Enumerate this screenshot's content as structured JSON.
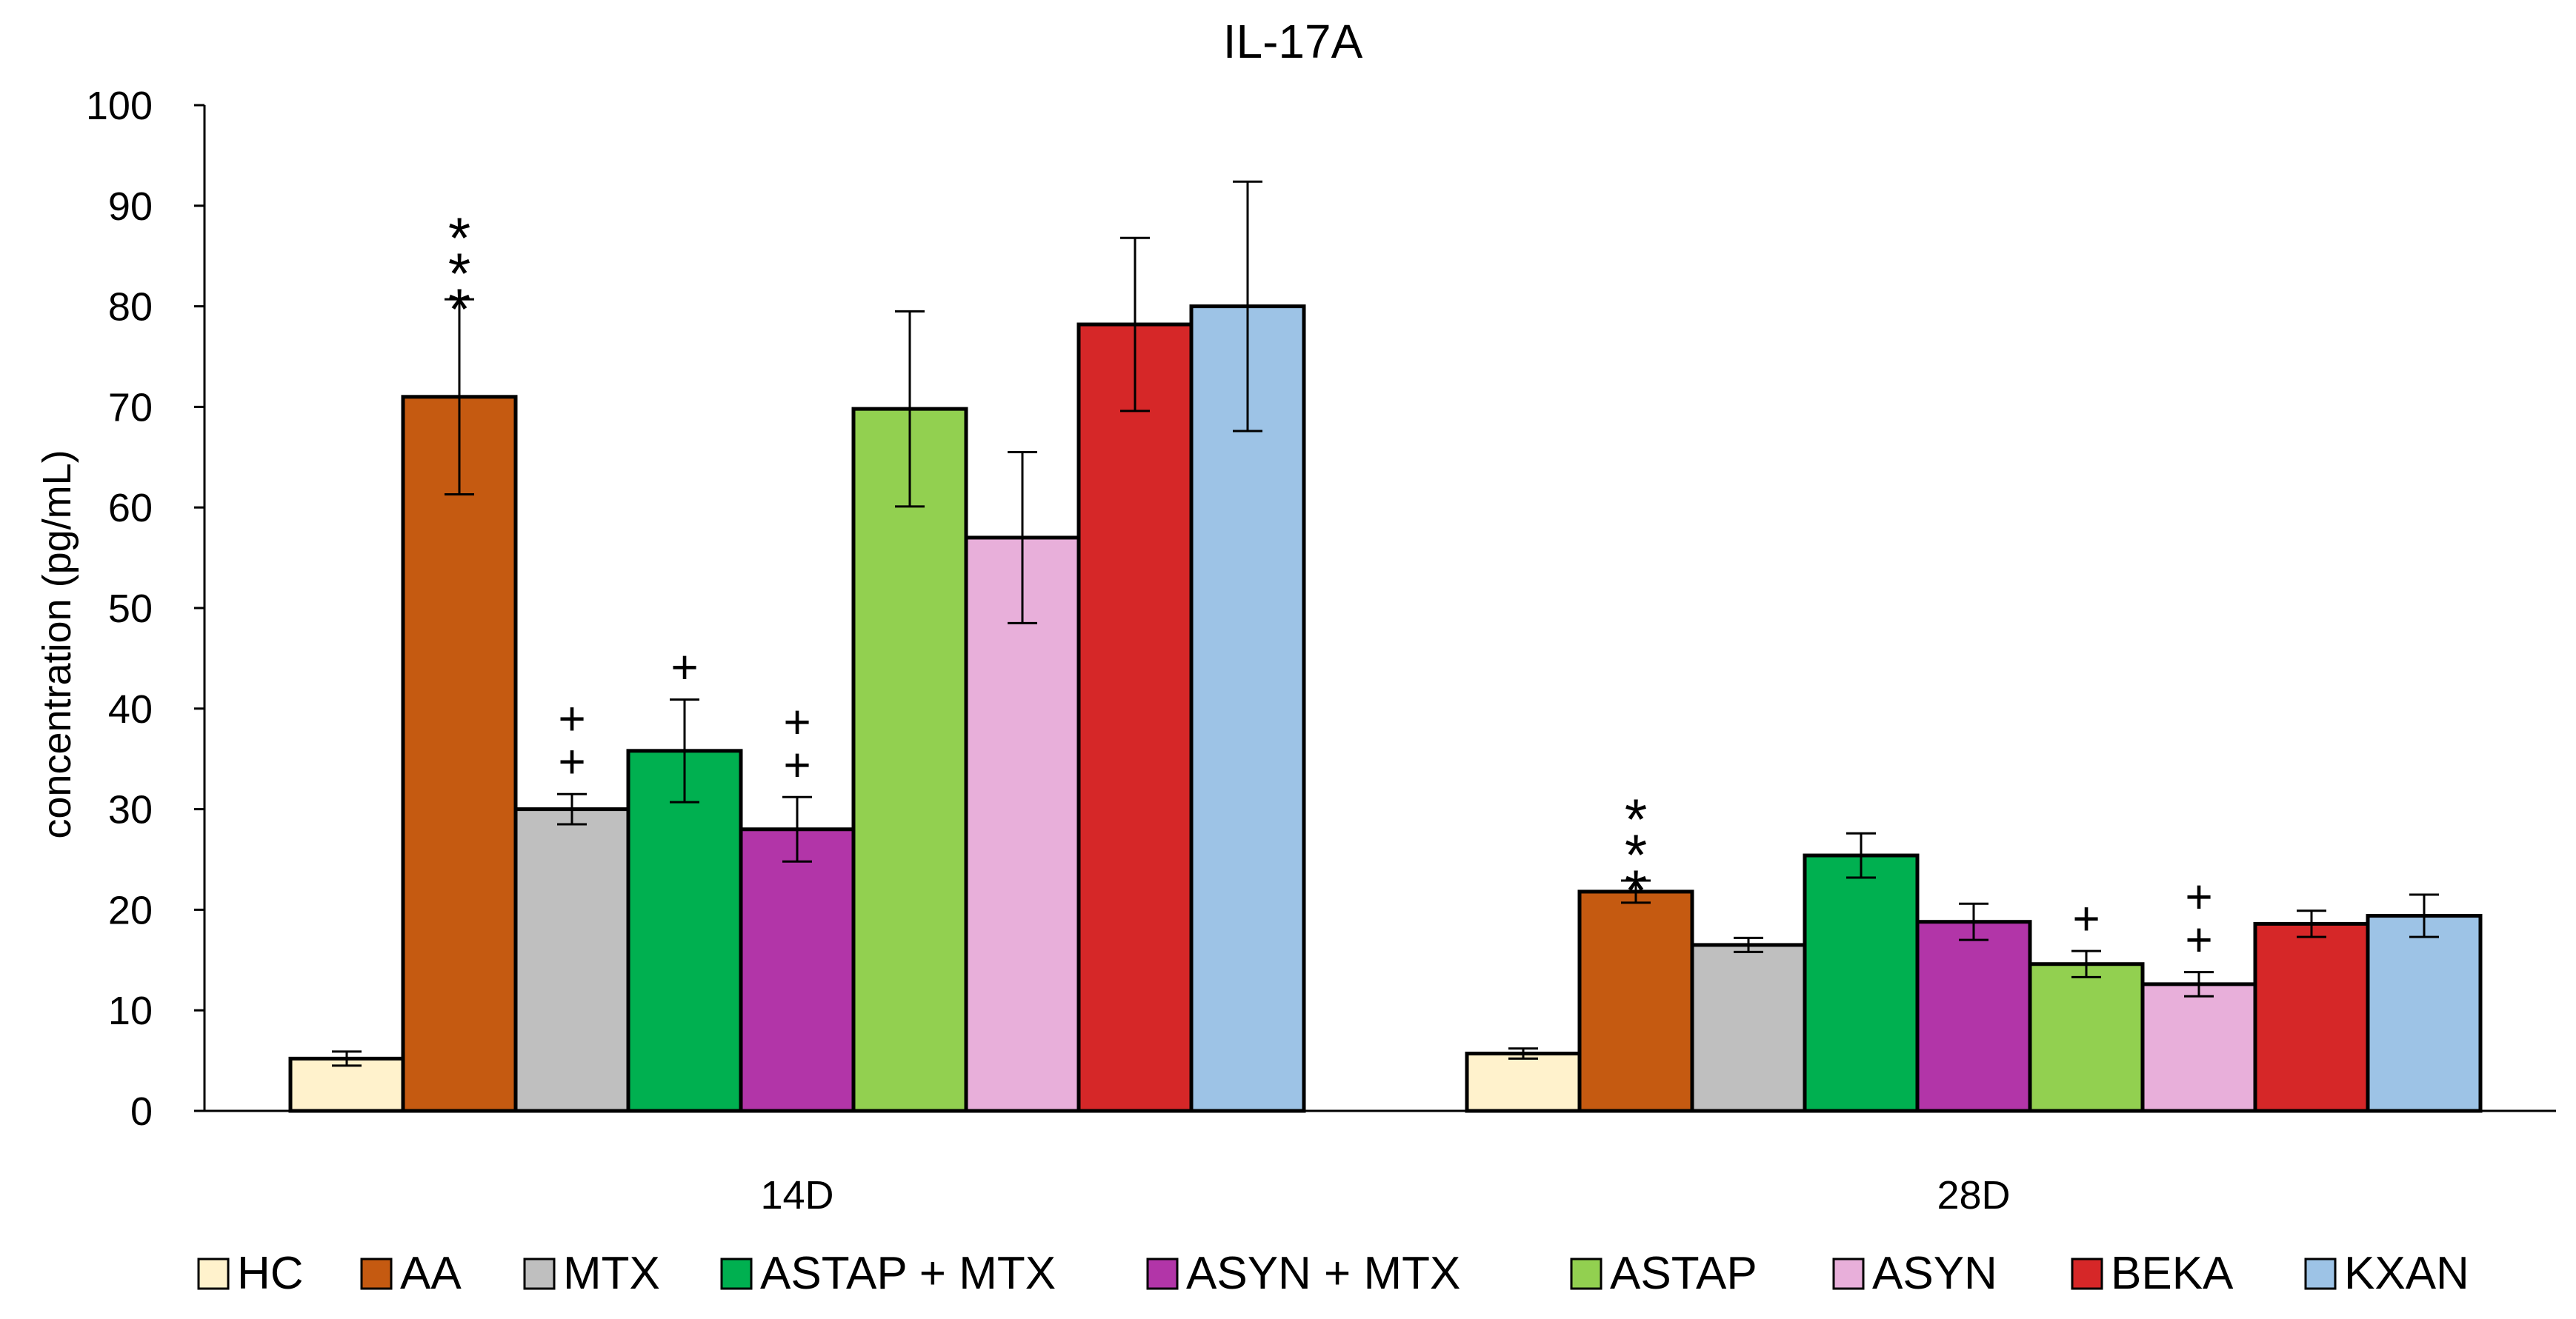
{
  "chart_data": {
    "type": "bar",
    "title": "IL-17A",
    "xlabel": "",
    "ylabel": "concentration (pg/mL)",
    "ylim": [
      0,
      100
    ],
    "yticks": [
      0,
      10,
      20,
      30,
      40,
      50,
      60,
      70,
      80,
      90,
      100
    ],
    "grid": false,
    "legend_position": "bottom",
    "categories": [
      "14D",
      "28D"
    ],
    "series": [
      {
        "name": "HC",
        "color": "#FFF2CC",
        "values": [
          5.2,
          5.7
        ],
        "errors": [
          0.7,
          0.5
        ],
        "annotations": [
          "",
          ""
        ]
      },
      {
        "name": "AA",
        "color": "#C55A11",
        "values": [
          71,
          21.8
        ],
        "errors": [
          9.7,
          1.1
        ],
        "annotations": [
          "***",
          "***"
        ]
      },
      {
        "name": "MTX",
        "color": "#BFBFBF",
        "values": [
          30,
          16.5
        ],
        "errors": [
          1.5,
          0.7
        ],
        "annotations": [
          "++",
          ""
        ]
      },
      {
        "name": "ASTAP + MTX",
        "color": "#00B050",
        "values": [
          35.8,
          25.4
        ],
        "errors": [
          5.1,
          2.2
        ],
        "annotations": [
          "+",
          ""
        ]
      },
      {
        "name": "ASYN + MTX",
        "color": "#B235A8",
        "values": [
          28,
          18.8
        ],
        "errors": [
          3.2,
          1.8
        ],
        "annotations": [
          "++",
          ""
        ]
      },
      {
        "name": "ASTAP",
        "color": "#92D050",
        "values": [
          69.8,
          14.6
        ],
        "errors": [
          9.7,
          1.3
        ],
        "annotations": [
          "",
          "+"
        ]
      },
      {
        "name": "ASYN",
        "color": "#E8AFDA",
        "values": [
          57,
          12.6
        ],
        "errors": [
          8.5,
          1.2
        ],
        "annotations": [
          "",
          "++"
        ]
      },
      {
        "name": "BEKA",
        "color": "#D62728",
        "values": [
          78.2,
          18.6
        ],
        "errors": [
          8.6,
          1.3
        ],
        "annotations": [
          "",
          ""
        ]
      },
      {
        "name": "KXAN",
        "color": "#9DC3E6",
        "values": [
          80,
          19.4
        ],
        "errors": [
          12.4,
          2.1
        ],
        "annotations": [
          "",
          ""
        ]
      }
    ]
  }
}
